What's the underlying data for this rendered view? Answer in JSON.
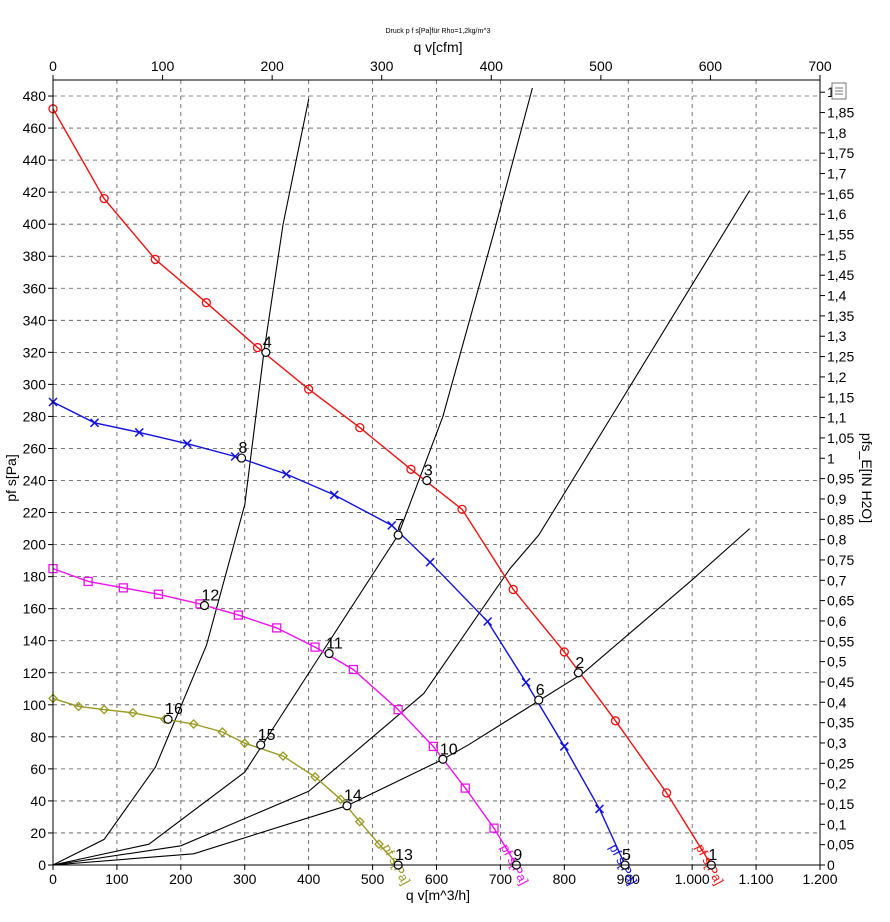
{
  "chart_data": {
    "type": "line",
    "title": "Druck p f s[Pa]für Rho=1,2kg/m^3",
    "xlabel": "q v[m^3/h]",
    "ylabel": "pf s[Pa]",
    "x2label": "q v[cfm]",
    "y2label": "pfs_E[IN H2O]",
    "xlim": [
      0,
      1200
    ],
    "ylim": [
      0,
      490
    ],
    "x2lim": [
      0,
      700
    ],
    "y2lim": [
      0,
      1.93
    ],
    "grid": true,
    "x_ticks": [
      "0",
      "100",
      "200",
      "300",
      "400",
      "500",
      "600",
      "700",
      "800",
      "900",
      "1.000",
      "1.100",
      "1.200"
    ],
    "y_ticks": [
      "0",
      "20",
      "40",
      "60",
      "80",
      "100",
      "120",
      "140",
      "160",
      "180",
      "200",
      "220",
      "240",
      "260",
      "280",
      "300",
      "320",
      "340",
      "360",
      "380",
      "400",
      "420",
      "440",
      "460",
      "480"
    ],
    "x2_ticks": [
      "0",
      "100",
      "200",
      "300",
      "400",
      "500",
      "600",
      "700"
    ],
    "y2_ticks": [
      "0",
      "0,05",
      "0,1",
      "0,15",
      "0,2",
      "0,25",
      "0,3",
      "0,35",
      "0,4",
      "0,45",
      "0,5",
      "0,55",
      "0,6",
      "0,65",
      "0,7",
      "0,75",
      "0,8",
      "0,85",
      "0,9",
      "0,95",
      "1",
      "1,05",
      "1,1",
      "1,15",
      "1,2",
      "1,25",
      "1,3",
      "1,35",
      "1,4",
      "1,45",
      "1,5",
      "1,55",
      "1,6",
      "1,65",
      "1,7",
      "1,75",
      "1,8",
      "1,85",
      "1,9"
    ],
    "series": [
      {
        "label": "pf s[Pa]",
        "color": "#ee1111",
        "marker": "circle",
        "x": [
          0,
          80,
          160,
          240,
          320,
          400,
          480,
          560,
          640,
          720,
          800,
          880,
          960,
          1030
        ],
        "y": [
          472,
          416,
          378,
          351,
          323,
          297,
          273,
          247,
          222,
          172,
          133,
          90,
          45,
          0
        ]
      },
      {
        "label": "pf s[Pa]",
        "color": "#1111dd",
        "marker": "x",
        "x": [
          0,
          65,
          135,
          210,
          285,
          365,
          440,
          530,
          590,
          680,
          740,
          800,
          855,
          895
        ],
        "y": [
          289,
          276,
          270,
          263,
          255,
          244,
          231,
          212,
          189,
          152,
          114,
          74,
          35,
          0
        ]
      },
      {
        "label": "pf s[Pa]",
        "color": "#ee11ee",
        "marker": "square",
        "x": [
          0,
          55,
          110,
          165,
          230,
          290,
          350,
          410,
          470,
          540,
          595,
          645,
          690,
          725
        ],
        "y": [
          185,
          177,
          173,
          169,
          163,
          156,
          148,
          136,
          122,
          97,
          74,
          48,
          23,
          0
        ]
      },
      {
        "label": "pf s[Pa]",
        "color": "#999922",
        "marker": "diamond",
        "x": [
          0,
          40,
          80,
          125,
          175,
          220,
          265,
          300,
          360,
          410,
          450,
          480,
          510,
          540
        ],
        "y": [
          104,
          99,
          97,
          95,
          91,
          88,
          83,
          76,
          68,
          55,
          41,
          27,
          13,
          0
        ]
      }
    ],
    "system_curves": [
      {
        "x": [
          0,
          80,
          160,
          240,
          300,
          330,
          360,
          400
        ],
        "y": [
          0,
          16,
          61,
          137,
          225,
          320,
          400,
          478
        ]
      },
      {
        "x": [
          0,
          150,
          300,
          420,
          540,
          610,
          690,
          750
        ],
        "y": [
          0,
          13,
          58,
          132,
          206,
          280,
          395,
          485
        ]
      },
      {
        "x": [
          0,
          200,
          400,
          580,
          715,
          760,
          880,
          1090
        ],
        "y": [
          0,
          12,
          46,
          107,
          185,
          206,
          284,
          421
        ]
      },
      {
        "x": [
          0,
          220,
          460,
          610,
          650,
          830,
          1000,
          1090
        ],
        "y": [
          0,
          7,
          37,
          66,
          75,
          120,
          178,
          210
        ]
      }
    ],
    "points": [
      {
        "label": "1",
        "x": 1030,
        "y": 0
      },
      {
        "label": "2",
        "x": 822,
        "y": 120
      },
      {
        "label": "3",
        "x": 585,
        "y": 240
      },
      {
        "label": "4",
        "x": 333,
        "y": 320
      },
      {
        "label": "5",
        "x": 895,
        "y": 0
      },
      {
        "label": "6",
        "x": 760,
        "y": 103
      },
      {
        "label": "7",
        "x": 540,
        "y": 206
      },
      {
        "label": "8",
        "x": 295,
        "y": 254
      },
      {
        "label": "9",
        "x": 725,
        "y": 0
      },
      {
        "label": "10",
        "x": 610,
        "y": 66
      },
      {
        "label": "11",
        "x": 432,
        "y": 132
      },
      {
        "label": "12",
        "x": 237,
        "y": 162
      },
      {
        "label": "13",
        "x": 540,
        "y": 0
      },
      {
        "label": "14",
        "x": 460,
        "y": 37
      },
      {
        "label": "15",
        "x": 325,
        "y": 75
      },
      {
        "label": "16",
        "x": 180,
        "y": 91
      }
    ],
    "series_label_text": "pf s[Pa]"
  }
}
